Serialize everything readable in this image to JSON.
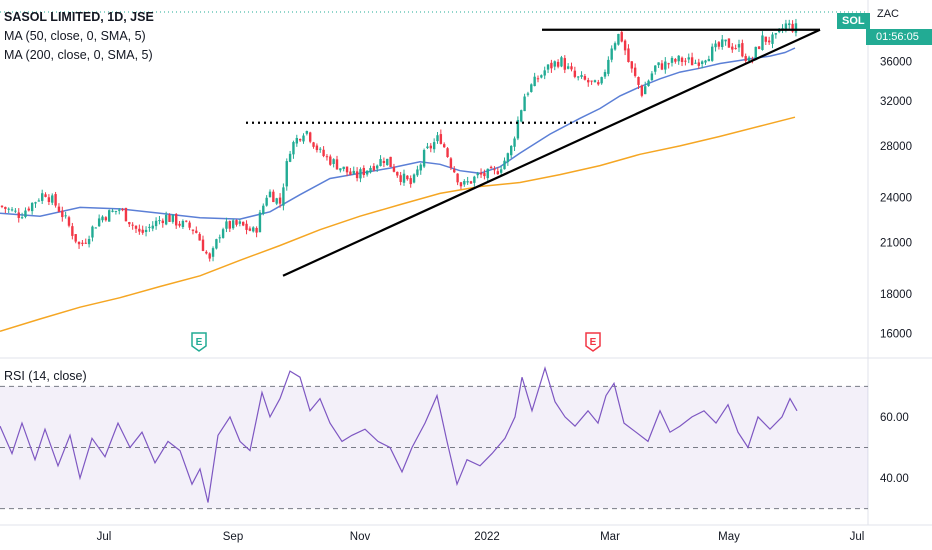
{
  "chart_data": [
    {
      "type": "candlestick",
      "title": "SASOL LIMITED, 1D, JSE",
      "currency": "ZAC",
      "symbol_badge": "SOL",
      "countdown": "01:56:05",
      "indicators": [
        {
          "label": "MA (50, close, 0, SMA, 5)",
          "color": "#5b7fd6"
        },
        {
          "label": "MA (200, close, 0, SMA, 5)",
          "color": "#f5a623"
        }
      ],
      "y_axis": {
        "scale": "log",
        "ticks": [
          16000,
          18000,
          21000,
          24000,
          28000,
          32000,
          36000
        ],
        "range": [
          15000,
          42000
        ]
      },
      "x_axis": {
        "ticks": [
          "Jul",
          "Sep",
          "Nov",
          "2022",
          "Mar",
          "May",
          "Jul"
        ]
      },
      "series": [
        {
          "name": "MA (50, close, 0, SMA, 5)",
          "color": "#5b7fd6",
          "points": [
            [
              0,
              22900
            ],
            [
              40,
              22700
            ],
            [
              80,
              23300
            ],
            [
              120,
              23200
            ],
            [
              160,
              22900
            ],
            [
              200,
              22600
            ],
            [
              240,
              22500
            ],
            [
              270,
              23000
            ],
            [
              300,
              24200
            ],
            [
              330,
              25400
            ],
            [
              360,
              25800
            ],
            [
              390,
              26200
            ],
            [
              420,
              26700
            ],
            [
              440,
              26500
            ],
            [
              460,
              26000
            ],
            [
              480,
              25800
            ],
            [
              500,
              26300
            ],
            [
              520,
              27400
            ],
            [
              550,
              29000
            ],
            [
              580,
              30400
            ],
            [
              600,
              31300
            ],
            [
              620,
              32500
            ],
            [
              640,
              33400
            ],
            [
              660,
              34200
            ],
            [
              680,
              34900
            ],
            [
              700,
              35300
            ],
            [
              720,
              35800
            ],
            [
              750,
              36300
            ],
            [
              770,
              36600
            ],
            [
              785,
              37000
            ],
            [
              795,
              37500
            ]
          ]
        },
        {
          "name": "MA (200, close, 0, SMA, 5)",
          "color": "#f5a623",
          "points": [
            [
              0,
              16100
            ],
            [
              40,
              16700
            ],
            [
              80,
              17300
            ],
            [
              120,
              17800
            ],
            [
              160,
              18400
            ],
            [
              200,
              19000
            ],
            [
              240,
              19900
            ],
            [
              280,
              20800
            ],
            [
              320,
              21800
            ],
            [
              360,
              22700
            ],
            [
              400,
              23500
            ],
            [
              440,
              24300
            ],
            [
              480,
              24800
            ],
            [
              520,
              25100
            ],
            [
              560,
              25700
            ],
            [
              600,
              26400
            ],
            [
              640,
              27300
            ],
            [
              680,
              28000
            ],
            [
              720,
              28800
            ],
            [
              760,
              29700
            ],
            [
              795,
              30500
            ]
          ]
        }
      ],
      "close_path": [
        [
          0,
          23400
        ],
        [
          20,
          22800
        ],
        [
          45,
          24400
        ],
        [
          60,
          23100
        ],
        [
          80,
          20700
        ],
        [
          100,
          22600
        ],
        [
          120,
          23200
        ],
        [
          140,
          21500
        ],
        [
          165,
          22700
        ],
        [
          180,
          22200
        ],
        [
          195,
          21800
        ],
        [
          210,
          19800
        ],
        [
          222,
          22000
        ],
        [
          240,
          22100
        ],
        [
          255,
          21600
        ],
        [
          268,
          24500
        ],
        [
          280,
          23600
        ],
        [
          290,
          27800
        ],
        [
          305,
          29500
        ],
        [
          320,
          27400
        ],
        [
          340,
          26300
        ],
        [
          355,
          25500
        ],
        [
          372,
          26400
        ],
        [
          385,
          27000
        ],
        [
          400,
          25600
        ],
        [
          412,
          24900
        ],
        [
          425,
          27400
        ],
        [
          440,
          28800
        ],
        [
          450,
          26700
        ],
        [
          462,
          24800
        ],
        [
          478,
          25600
        ],
        [
          495,
          25800
        ],
        [
          510,
          27400
        ],
        [
          525,
          32700
        ],
        [
          545,
          35100
        ],
        [
          560,
          36200
        ],
        [
          575,
          34300
        ],
        [
          590,
          33800
        ],
        [
          600,
          33200
        ],
        [
          612,
          37900
        ],
        [
          620,
          39200
        ],
        [
          630,
          35400
        ],
        [
          642,
          32800
        ],
        [
          655,
          35400
        ],
        [
          668,
          35800
        ],
        [
          680,
          36200
        ],
        [
          695,
          35900
        ],
        [
          710,
          37000
        ],
        [
          725,
          38000
        ],
        [
          740,
          37500
        ],
        [
          750,
          35800
        ],
        [
          762,
          38500
        ],
        [
          775,
          38400
        ],
        [
          785,
          40200
        ],
        [
          795,
          39800
        ]
      ],
      "annotations": {
        "resistance_line": {
          "from": [
            542,
            39600
          ],
          "to": [
            820,
            39600
          ]
        },
        "support_trendline": {
          "from": [
            283,
            19000
          ],
          "to": [
            820,
            39600
          ]
        },
        "dotted_level": {
          "from": [
            246,
            30000
          ],
          "to": [
            598,
            30000
          ]
        },
        "earnings_markers": [
          {
            "x": 199,
            "label": "E",
            "color": "#22ab94"
          },
          {
            "x": 593,
            "label": "E",
            "color": "#f23645"
          }
        ]
      }
    },
    {
      "type": "line",
      "title": "RSI (14, close)",
      "y_axis": {
        "ticks": [
          40.0,
          60.0
        ],
        "range": [
          23,
          77
        ],
        "bands": [
          30,
          50,
          70
        ]
      },
      "series": [
        {
          "name": "RSI (14, close)",
          "color": "#7e57c2",
          "points": [
            [
              0,
              57
            ],
            [
              12,
              48
            ],
            [
              22,
              58
            ],
            [
              35,
              46
            ],
            [
              45,
              56
            ],
            [
              58,
              44
            ],
            [
              70,
              54
            ],
            [
              80,
              40
            ],
            [
              92,
              53
            ],
            [
              105,
              47
            ],
            [
              118,
              58
            ],
            [
              130,
              50
            ],
            [
              142,
              55
            ],
            [
              155,
              45
            ],
            [
              168,
              52
            ],
            [
              180,
              49
            ],
            [
              192,
              38
            ],
            [
              200,
              43
            ],
            [
              208,
              32
            ],
            [
              218,
              54
            ],
            [
              230,
              60
            ],
            [
              240,
              52
            ],
            [
              250,
              49
            ],
            [
              262,
              68
            ],
            [
              270,
              60
            ],
            [
              280,
              66
            ],
            [
              290,
              75
            ],
            [
              300,
              73
            ],
            [
              310,
              62
            ],
            [
              320,
              66
            ],
            [
              330,
              58
            ],
            [
              342,
              52
            ],
            [
              352,
              54
            ],
            [
              365,
              56
            ],
            [
              378,
              52
            ],
            [
              390,
              50
            ],
            [
              402,
              42
            ],
            [
              412,
              50
            ],
            [
              425,
              58
            ],
            [
              437,
              67
            ],
            [
              447,
              52
            ],
            [
              457,
              38
            ],
            [
              467,
              46
            ],
            [
              480,
              44
            ],
            [
              492,
              48
            ],
            [
              505,
              53
            ],
            [
              515,
              60
            ],
            [
              522,
              73
            ],
            [
              532,
              62
            ],
            [
              545,
              76
            ],
            [
              555,
              65
            ],
            [
              565,
              60
            ],
            [
              575,
              57
            ],
            [
              588,
              62
            ],
            [
              598,
              58
            ],
            [
              606,
              67
            ],
            [
              614,
              71
            ],
            [
              624,
              58
            ],
            [
              636,
              55
            ],
            [
              648,
              52
            ],
            [
              660,
              62
            ],
            [
              670,
              55
            ],
            [
              680,
              57
            ],
            [
              692,
              60
            ],
            [
              704,
              62
            ],
            [
              716,
              58
            ],
            [
              728,
              64
            ],
            [
              738,
              55
            ],
            [
              748,
              50
            ],
            [
              758,
              60
            ],
            [
              770,
              56
            ],
            [
              782,
              60
            ],
            [
              790,
              66
            ],
            [
              797,
              62
            ]
          ]
        }
      ]
    }
  ]
}
